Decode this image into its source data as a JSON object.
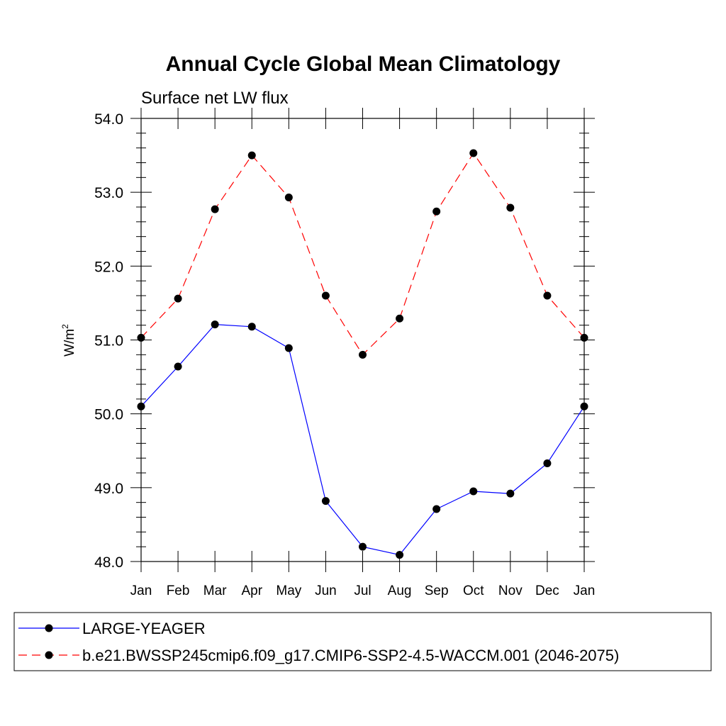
{
  "chart_data": {
    "type": "line",
    "title": "Annual Cycle Global Mean Climatology",
    "subtitle": "Surface net LW flux",
    "xlabel": "",
    "ylabel": "W/m",
    "ylabel_sup": "2",
    "categories": [
      "Jan",
      "Feb",
      "Mar",
      "Apr",
      "May",
      "Jun",
      "Jul",
      "Aug",
      "Sep",
      "Oct",
      "Nov",
      "Dec",
      "Jan"
    ],
    "ylim": [
      48.0,
      54.0
    ],
    "yticks": [
      "48.0",
      "49.0",
      "50.0",
      "51.0",
      "52.0",
      "53.0",
      "54.0"
    ],
    "grid": false,
    "legend_position": "bottom",
    "series": [
      {
        "name": "LARGE-YEAGER",
        "color": "#0000ff",
        "dash": "solid",
        "values": [
          50.1,
          50.64,
          51.21,
          51.18,
          50.89,
          48.82,
          48.2,
          48.09,
          48.71,
          48.95,
          48.92,
          49.33,
          50.1
        ]
      },
      {
        "name": "b.e21.BWSSP245cmip6.f09_g17.CMIP6-SSP2-4.5-WACCM.001 (2046-2075)",
        "color": "#ff0000",
        "dash": "dashed",
        "values": [
          51.03,
          51.56,
          52.77,
          53.5,
          52.93,
          51.6,
          50.8,
          51.29,
          52.74,
          53.53,
          52.79,
          51.6,
          51.03
        ]
      }
    ]
  }
}
